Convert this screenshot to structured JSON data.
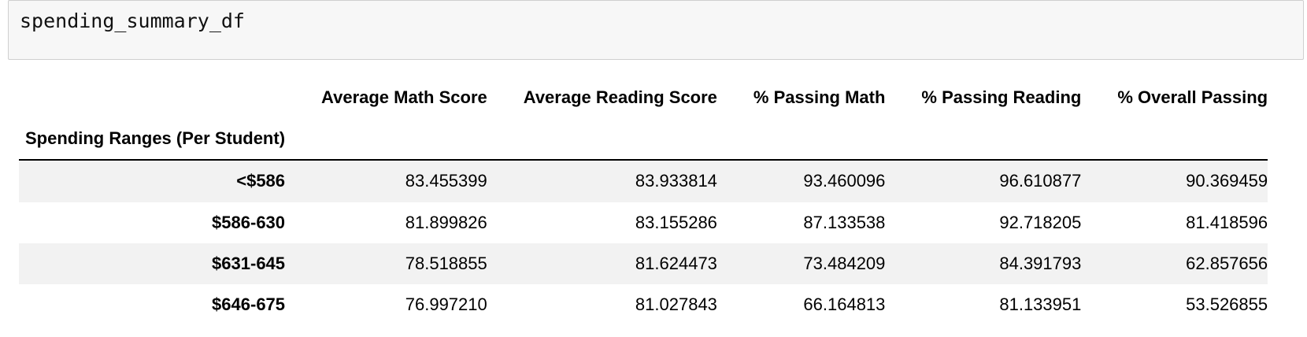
{
  "code_cell": {
    "source": "spending_summary_df"
  },
  "table": {
    "index_name": "Spending Ranges (Per Student)",
    "columns": [
      "Average Math Score",
      "Average Reading Score",
      "% Passing Math",
      "% Passing Reading",
      "% Overall Passing"
    ],
    "rows": [
      {
        "index": "<$586",
        "values": [
          "83.455399",
          "83.933814",
          "93.460096",
          "96.610877",
          "90.369459"
        ]
      },
      {
        "index": "$586-630",
        "values": [
          "81.899826",
          "83.155286",
          "87.133538",
          "92.718205",
          "81.418596"
        ]
      },
      {
        "index": "$631-645",
        "values": [
          "78.518855",
          "81.624473",
          "73.484209",
          "84.391793",
          "62.857656"
        ]
      },
      {
        "index": "$646-675",
        "values": [
          "76.997210",
          "81.027843",
          "66.164813",
          "81.133951",
          "53.526855"
        ]
      }
    ],
    "colors": {
      "stripe": "#f2f2f2",
      "cell_background": "#f7f7f7",
      "cell_border": "#cfcfcf",
      "header_rule": "#000000"
    }
  }
}
